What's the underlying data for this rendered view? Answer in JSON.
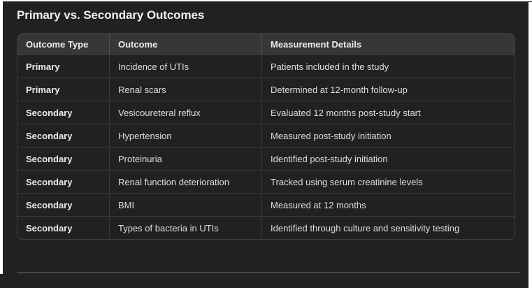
{
  "title": "Primary vs. Secondary Outcomes",
  "table": {
    "columns": [
      "Outcome Type",
      "Outcome",
      "Measurement Details"
    ],
    "rows": [
      [
        "Primary",
        "Incidence of UTIs",
        "Patients included in the study"
      ],
      [
        "Primary",
        "Renal scars",
        "Determined at 12-month follow-up"
      ],
      [
        "Secondary",
        "Vesicoureteral reflux",
        "Evaluated 12 months post-study start"
      ],
      [
        "Secondary",
        "Hypertension",
        "Measured post-study initiation"
      ],
      [
        "Secondary",
        "Proteinuria",
        "Identified post-study initiation"
      ],
      [
        "Secondary",
        "Renal function deterioration",
        "Tracked using serum creatinine levels"
      ],
      [
        "Secondary",
        "BMI",
        "Measured at 12 months"
      ],
      [
        "Secondary",
        "Types of bacteria in UTIs",
        "Identified through culture and sensitivity testing"
      ]
    ]
  },
  "colors": {
    "page_background": "#212121",
    "table_header_background": "#373737",
    "table_border": "#404040",
    "grid_line": "#383838",
    "title_text": "#f1f1f1",
    "body_text": "#dfdfdf",
    "bottom_rule": "#474747"
  }
}
